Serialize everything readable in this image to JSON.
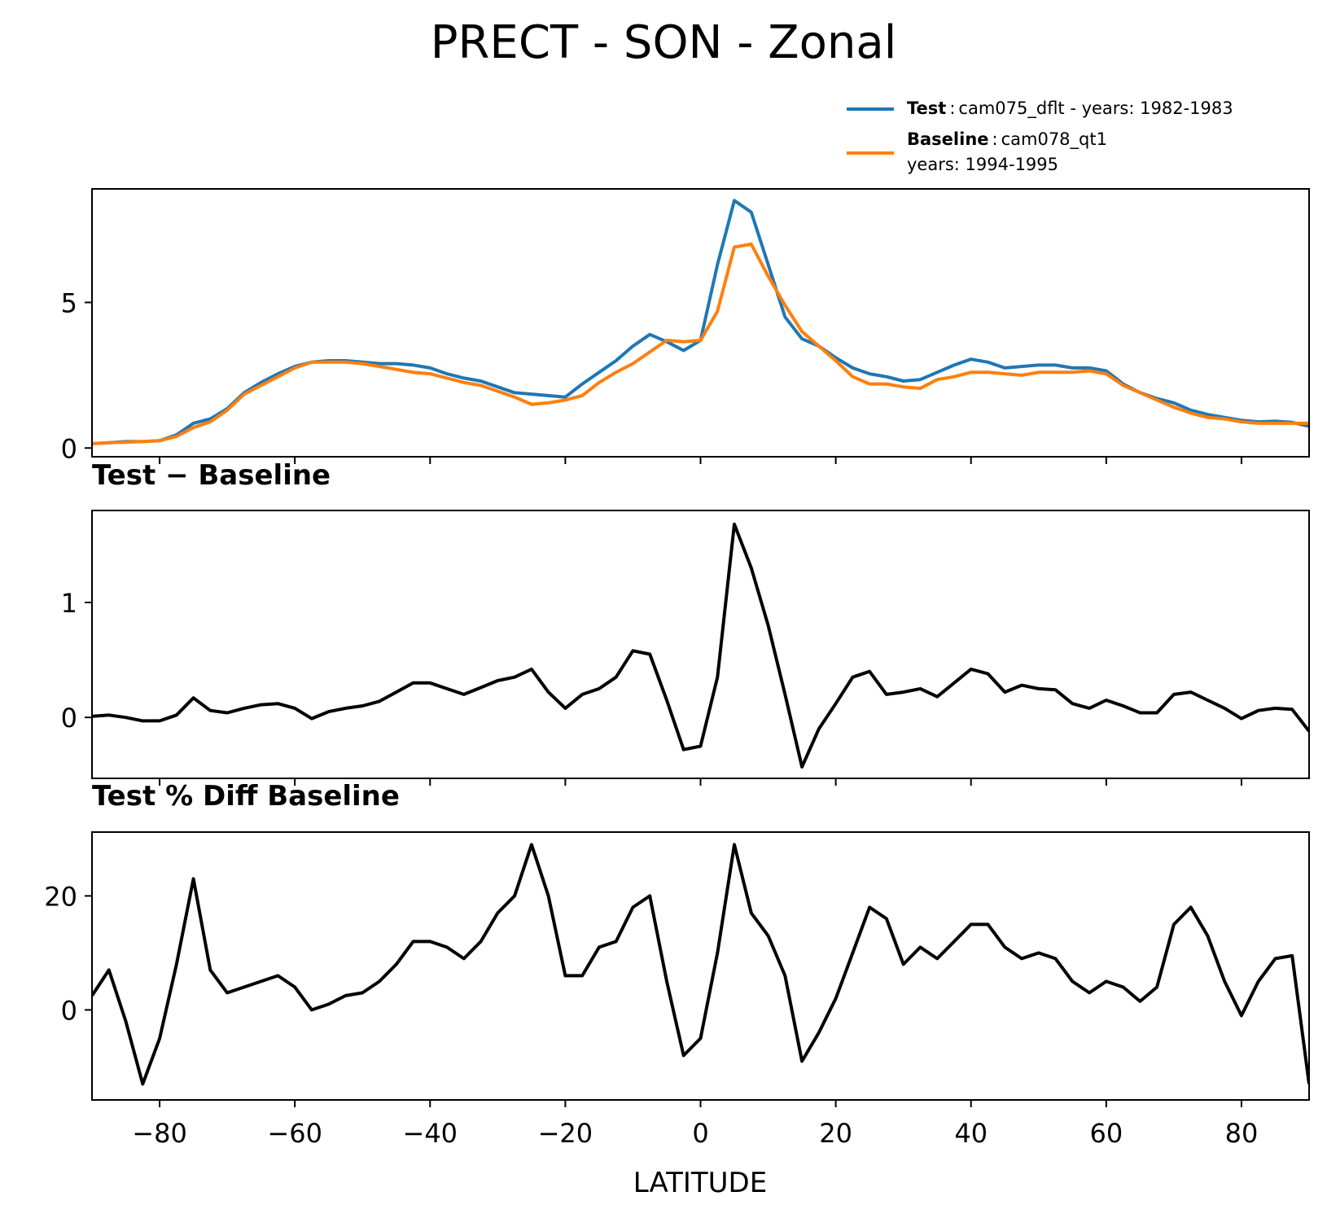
{
  "title": "PRECT - SON - Zonal",
  "legend": {
    "test": {
      "name": "Test",
      "sep": ":",
      "label": "cam075_dflt - years: 1982-1983"
    },
    "baseline": {
      "name": "Baseline",
      "sep": ":",
      "label": "cam078_qt1",
      "label2": "years: 1994-1995"
    }
  },
  "colors": {
    "test": "#1f77b4",
    "baseline": "#ff7f0e",
    "diff": "#000000"
  },
  "chart_data": [
    {
      "type": "line",
      "panel": "top",
      "title": "",
      "xlabel": "",
      "ylabel": "",
      "xlim": [
        -90,
        90
      ],
      "ylim": [
        -0.3,
        8.9
      ],
      "yticks": [
        0,
        5
      ],
      "xticks": [
        -80,
        -60,
        -40,
        -20,
        0,
        20,
        40,
        60,
        80
      ],
      "x": [
        -90,
        -87.5,
        -85,
        -82.5,
        -80,
        -77.5,
        -75,
        -72.5,
        -70,
        -67.5,
        -65,
        -62.5,
        -60,
        -57.5,
        -55,
        -52.5,
        -50,
        -47.5,
        -45,
        -42.5,
        -40,
        -37.5,
        -35,
        -32.5,
        -30,
        -27.5,
        -25,
        -22.5,
        -20,
        -17.5,
        -15,
        -12.5,
        -10,
        -7.5,
        -5,
        -2.5,
        0,
        2.5,
        5,
        7.5,
        10,
        12.5,
        15,
        17.5,
        20,
        22.5,
        25,
        27.5,
        30,
        32.5,
        35,
        37.5,
        40,
        42.5,
        45,
        47.5,
        50,
        52.5,
        55,
        57.5,
        60,
        62.5,
        65,
        67.5,
        70,
        72.5,
        75,
        77.5,
        80,
        82.5,
        85,
        87.5,
        90
      ],
      "series": [
        {
          "name": "Test",
          "color": "#1f77b4",
          "values": [
            0.15,
            0.18,
            0.22,
            0.22,
            0.25,
            0.45,
            0.85,
            1.0,
            1.35,
            1.9,
            2.25,
            2.55,
            2.8,
            2.95,
            3.0,
            3.0,
            2.95,
            2.9,
            2.9,
            2.85,
            2.75,
            2.55,
            2.4,
            2.3,
            2.1,
            1.9,
            1.85,
            1.8,
            1.75,
            2.2,
            2.6,
            3.0,
            3.5,
            3.9,
            3.65,
            3.35,
            3.7,
            6.3,
            8.5,
            8.1,
            6.3,
            4.5,
            3.75,
            3.5,
            3.1,
            2.75,
            2.55,
            2.45,
            2.3,
            2.35,
            2.6,
            2.85,
            3.05,
            2.95,
            2.75,
            2.8,
            2.85,
            2.85,
            2.75,
            2.75,
            2.65,
            2.2,
            1.9,
            1.7,
            1.55,
            1.3,
            1.15,
            1.05,
            0.95,
            0.9,
            0.92,
            0.88,
            0.75
          ]
        },
        {
          "name": "Baseline",
          "color": "#ff7f0e",
          "values": [
            0.15,
            0.18,
            0.2,
            0.22,
            0.25,
            0.4,
            0.7,
            0.9,
            1.3,
            1.85,
            2.15,
            2.45,
            2.75,
            2.95,
            2.95,
            2.95,
            2.9,
            2.8,
            2.7,
            2.6,
            2.55,
            2.4,
            2.25,
            2.15,
            1.95,
            1.75,
            1.5,
            1.55,
            1.65,
            1.8,
            2.25,
            2.6,
            2.9,
            3.3,
            3.7,
            3.65,
            3.7,
            4.7,
            6.9,
            7.0,
            5.9,
            4.9,
            4.0,
            3.5,
            3.0,
            2.45,
            2.2,
            2.2,
            2.1,
            2.05,
            2.35,
            2.45,
            2.6,
            2.6,
            2.55,
            2.5,
            2.6,
            2.6,
            2.6,
            2.65,
            2.55,
            2.15,
            1.9,
            1.65,
            1.4,
            1.2,
            1.05,
            1.0,
            0.9,
            0.85,
            0.85,
            0.85,
            0.85
          ]
        }
      ]
    },
    {
      "type": "line",
      "panel": "middle",
      "title": "Test − Baseline",
      "xlabel": "",
      "ylabel": "",
      "xlim": [
        -90,
        90
      ],
      "ylim": [
        -0.53,
        1.8
      ],
      "yticks": [
        0,
        1
      ],
      "xticks": [
        -80,
        -60,
        -40,
        -20,
        0,
        20,
        40,
        60,
        80
      ],
      "x": [
        -90,
        -87.5,
        -85,
        -82.5,
        -80,
        -77.5,
        -75,
        -72.5,
        -70,
        -67.5,
        -65,
        -62.5,
        -60,
        -57.5,
        -55,
        -52.5,
        -50,
        -47.5,
        -45,
        -42.5,
        -40,
        -37.5,
        -35,
        -32.5,
        -30,
        -27.5,
        -25,
        -22.5,
        -20,
        -17.5,
        -15,
        -12.5,
        -10,
        -7.5,
        -5,
        -2.5,
        0,
        2.5,
        5,
        7.5,
        10,
        12.5,
        15,
        17.5,
        20,
        22.5,
        25,
        27.5,
        30,
        32.5,
        35,
        37.5,
        40,
        42.5,
        45,
        47.5,
        50,
        52.5,
        55,
        57.5,
        60,
        62.5,
        65,
        67.5,
        70,
        72.5,
        75,
        77.5,
        80,
        82.5,
        85,
        87.5,
        90
      ],
      "series": [
        {
          "name": "Test − Baseline",
          "color": "#000000",
          "values": [
            0.01,
            0.02,
            0.0,
            -0.03,
            -0.03,
            0.02,
            0.17,
            0.06,
            0.04,
            0.08,
            0.11,
            0.12,
            0.08,
            -0.01,
            0.05,
            0.08,
            0.1,
            0.14,
            0.22,
            0.3,
            0.3,
            0.25,
            0.2,
            0.26,
            0.32,
            0.35,
            0.42,
            0.22,
            0.08,
            0.2,
            0.25,
            0.35,
            0.58,
            0.55,
            0.15,
            -0.28,
            -0.25,
            0.35,
            1.68,
            1.3,
            0.8,
            0.2,
            -0.43,
            -0.1,
            0.12,
            0.35,
            0.4,
            0.2,
            0.22,
            0.25,
            0.18,
            0.3,
            0.42,
            0.38,
            0.22,
            0.28,
            0.25,
            0.24,
            0.12,
            0.08,
            0.15,
            0.1,
            0.04,
            0.04,
            0.2,
            0.22,
            0.15,
            0.08,
            -0.01,
            0.06,
            0.08,
            0.07,
            -0.12
          ]
        }
      ]
    },
    {
      "type": "line",
      "panel": "bottom",
      "title": "Test % Diff Baseline",
      "xlabel": "LATITUDE",
      "ylabel": "",
      "xlim": [
        -90,
        90
      ],
      "ylim": [
        -15.8,
        31.2
      ],
      "yticks": [
        0,
        20
      ],
      "xticks": [
        -80,
        -60,
        -40,
        -20,
        0,
        20,
        40,
        60,
        80
      ],
      "x": [
        -90,
        -87.5,
        -85,
        -82.5,
        -80,
        -77.5,
        -75,
        -72.5,
        -70,
        -67.5,
        -65,
        -62.5,
        -60,
        -57.5,
        -55,
        -52.5,
        -50,
        -47.5,
        -45,
        -42.5,
        -40,
        -37.5,
        -35,
        -32.5,
        -30,
        -27.5,
        -25,
        -22.5,
        -20,
        -17.5,
        -15,
        -12.5,
        -10,
        -7.5,
        -5,
        -2.5,
        0,
        2.5,
        5,
        7.5,
        10,
        12.5,
        15,
        17.5,
        20,
        22.5,
        25,
        27.5,
        30,
        32.5,
        35,
        37.5,
        40,
        42.5,
        45,
        47.5,
        50,
        52.5,
        55,
        57.5,
        60,
        62.5,
        65,
        67.5,
        70,
        72.5,
        75,
        77.5,
        80,
        82.5,
        85,
        87.5,
        90
      ],
      "series": [
        {
          "name": "Test % Diff Baseline",
          "color": "#000000",
          "values": [
            2.5,
            7,
            -2,
            -13,
            -5,
            8,
            23,
            7,
            3,
            4,
            5,
            6,
            4,
            0,
            1,
            2.5,
            3,
            5,
            8,
            12,
            12,
            11,
            9,
            12,
            17,
            20,
            29,
            20,
            6,
            6,
            11,
            12,
            18,
            20,
            5,
            -8,
            -5,
            10,
            29,
            17,
            13,
            6,
            -9,
            -4,
            2,
            10,
            18,
            16,
            8,
            11,
            9,
            12,
            15,
            15,
            11,
            9,
            10,
            9,
            5,
            3,
            5,
            4,
            1.5,
            4,
            15,
            18,
            13,
            5,
            -1,
            5,
            9,
            9.5,
            -13
          ]
        }
      ]
    }
  ]
}
